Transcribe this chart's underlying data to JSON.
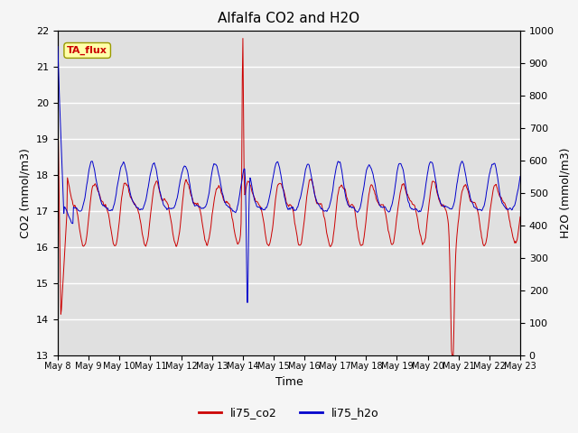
{
  "title": "Alfalfa CO2 and H2O",
  "xlabel": "Time",
  "ylabel_left": "CO2 (mmol/m3)",
  "ylabel_right": "H2O (mmol/m3)",
  "ylim_left": [
    13.0,
    22.0
  ],
  "ylim_right": [
    0,
    1000
  ],
  "yticks_left": [
    13.0,
    14.0,
    15.0,
    16.0,
    17.0,
    18.0,
    19.0,
    20.0,
    21.0,
    22.0
  ],
  "yticks_right": [
    0,
    100,
    200,
    300,
    400,
    500,
    600,
    700,
    800,
    900,
    1000
  ],
  "xtick_labels": [
    "May 8",
    "May 9",
    "May 10",
    "May 11",
    "May 12",
    "May 13",
    "May 14",
    "May 15",
    "May 16",
    "May 17",
    "May 18",
    "May 19",
    "May 20",
    "May 21",
    "May 22",
    "May 23"
  ],
  "color_co2": "#cc0000",
  "color_h2o": "#0000cc",
  "legend_labels": [
    "li75_co2",
    "li75_h2o"
  ],
  "annotation_text": "TA_flux",
  "background_color": "#e0e0e0",
  "grid_color": "#ffffff",
  "title_fontsize": 11,
  "label_fontsize": 9,
  "tick_fontsize": 8
}
